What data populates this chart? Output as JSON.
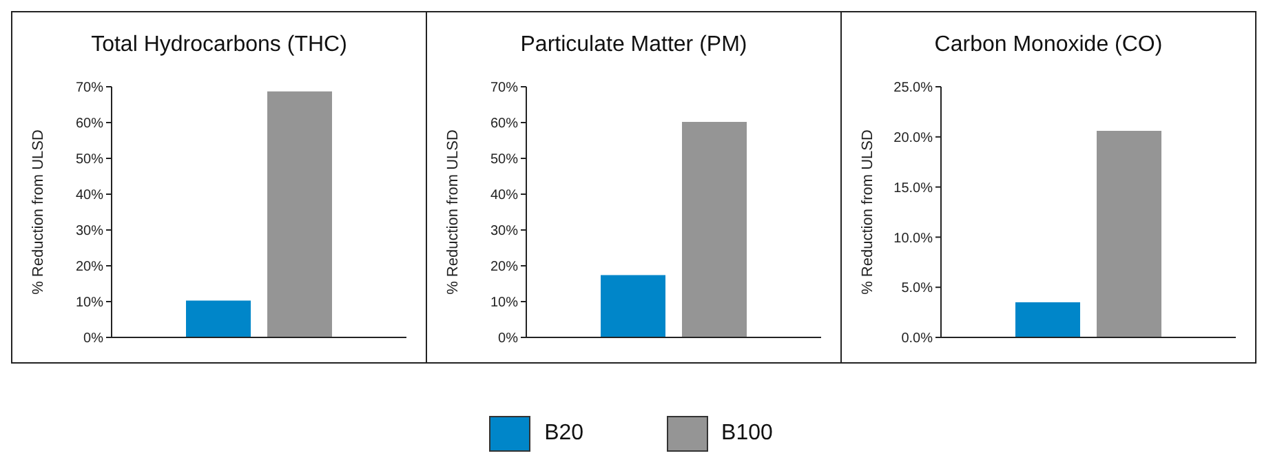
{
  "chart_data": [
    {
      "type": "bar",
      "title": "Total Hydrocarbons (THC)",
      "ylabel": "% Reduction from ULSD",
      "categories": [
        null
      ],
      "series": [
        {
          "name": "B20",
          "color": "#0086c9",
          "values": [
            10.3
          ]
        },
        {
          "name": "B100",
          "color": "#959595",
          "values": [
            68.7
          ]
        }
      ],
      "ylim": [
        0,
        70
      ],
      "yticks": [
        {
          "value": 0,
          "label": "0%"
        },
        {
          "value": 10,
          "label": "10%"
        },
        {
          "value": 20,
          "label": "20%"
        },
        {
          "value": 30,
          "label": "30%"
        },
        {
          "value": 40,
          "label": "40%"
        },
        {
          "value": 50,
          "label": "50%"
        },
        {
          "value": 60,
          "label": "60%"
        },
        {
          "value": 70,
          "label": "70%"
        }
      ],
      "grid": false,
      "legend": "bottom"
    },
    {
      "type": "bar",
      "title": "Particulate Matter (PM)",
      "ylabel": "% Reduction from ULSD",
      "categories": [
        null
      ],
      "series": [
        {
          "color": "#0086c9",
          "values": [
            17.4
          ]
        },
        {
          "color": "#959595",
          "values": [
            60.2
          ]
        }
      ],
      "ylim": [
        0,
        70
      ],
      "yticks": [
        {
          "value": 0,
          "label": "0%"
        },
        {
          "value": 10,
          "label": "10%"
        },
        {
          "value": 20,
          "label": "20%"
        },
        {
          "value": 30,
          "label": "30%"
        },
        {
          "value": 40,
          "label": "40%"
        },
        {
          "value": 50,
          "label": "50%"
        },
        {
          "value": 60,
          "label": "60%"
        },
        {
          "value": 70,
          "label": "70%"
        }
      ],
      "grid": false
    },
    {
      "type": "bar",
      "title": "Carbon Monoxide (CO)",
      "ylabel": "% Reduction from ULSD",
      "categories": [
        null
      ],
      "series": [
        {
          "color": "#0086c9",
          "values": [
            3.5
          ]
        },
        {
          "color": "#959595",
          "values": [
            20.6
          ]
        }
      ],
      "ylim": [
        0,
        25
      ],
      "yticks": [
        {
          "value": 0,
          "label": "0.0%"
        },
        {
          "value": 5,
          "label": "5.0%"
        },
        {
          "value": 10,
          "label": "10.0%"
        },
        {
          "value": 15,
          "label": "15.0%"
        },
        {
          "value": 20,
          "label": "20.0%"
        },
        {
          "value": 25,
          "label": "25.0%"
        }
      ],
      "grid": false
    }
  ]
}
